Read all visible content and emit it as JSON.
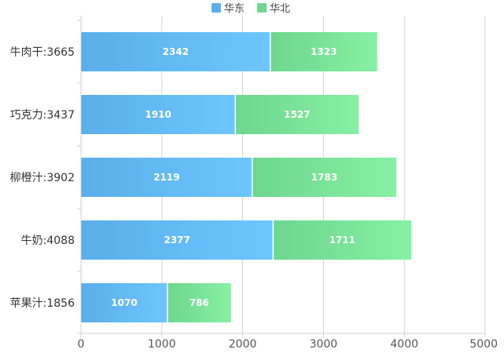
{
  "chart_data": {
    "type": "bar",
    "orientation": "horizontal",
    "stacked": true,
    "categories": [
      "牛肉干",
      "巧克力",
      "柳橙汁",
      "牛奶",
      "苹果汁"
    ],
    "category_labels": [
      "牛肉干:3665",
      "巧克力:3437",
      "柳橙汁:3902",
      "牛奶:4088",
      "苹果汁:1856"
    ],
    "series": [
      {
        "name": "华东",
        "values": [
          2342,
          1910,
          2119,
          2377,
          1070
        ],
        "color_start": "#5aaeea",
        "color_end": "#6dc6ff"
      },
      {
        "name": "华北",
        "values": [
          1323,
          1527,
          1783,
          1711,
          786
        ],
        "color_start": "#6ed68d",
        "color_end": "#86f0a4"
      }
    ],
    "xlim": [
      0,
      5000
    ],
    "x_ticks": [
      0,
      1000,
      2000,
      3000,
      4000,
      5000
    ],
    "grid": true,
    "legend": "top-center",
    "title": "",
    "xlabel": "",
    "ylabel": ""
  }
}
